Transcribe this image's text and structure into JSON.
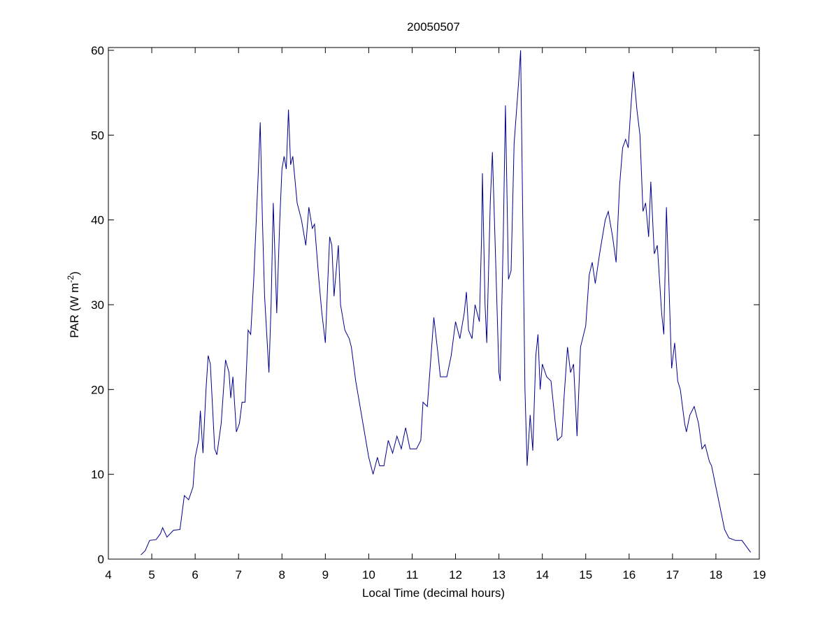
{
  "chart_data": {
    "type": "line",
    "title": "20050507",
    "xlabel": "Local Time (decimal hours)",
    "ylabel": {
      "text": "PAR (W m",
      "superscript": "-2",
      "suffix": ")"
    },
    "xlim": [
      4,
      19
    ],
    "ylim": [
      0,
      60
    ],
    "xticks": [
      4,
      5,
      6,
      7,
      8,
      9,
      10,
      11,
      12,
      13,
      14,
      15,
      16,
      17,
      18,
      19
    ],
    "yticks": [
      0,
      10,
      20,
      30,
      40,
      50,
      60
    ],
    "grid": false,
    "x": [
      4.75,
      4.85,
      4.95,
      5.1,
      5.2,
      5.25,
      5.35,
      5.5,
      5.65,
      5.75,
      5.85,
      5.95,
      6.0,
      6.08,
      6.12,
      6.18,
      6.25,
      6.3,
      6.35,
      6.45,
      6.5,
      6.6,
      6.7,
      6.78,
      6.82,
      6.87,
      6.95,
      7.02,
      7.08,
      7.15,
      7.22,
      7.28,
      7.35,
      7.45,
      7.5,
      7.55,
      7.6,
      7.7,
      7.75,
      7.8,
      7.88,
      7.95,
      8.0,
      8.05,
      8.1,
      8.15,
      8.2,
      8.25,
      8.35,
      8.45,
      8.55,
      8.62,
      8.7,
      8.75,
      8.85,
      8.92,
      9.0,
      9.05,
      9.1,
      9.15,
      9.2,
      9.3,
      9.35,
      9.45,
      9.55,
      9.6,
      9.7,
      9.8,
      9.9,
      10.0,
      10.1,
      10.2,
      10.25,
      10.35,
      10.45,
      10.55,
      10.65,
      10.75,
      10.85,
      10.95,
      11.1,
      11.2,
      11.25,
      11.35,
      11.5,
      11.6,
      11.65,
      11.8,
      11.9,
      12.0,
      12.1,
      12.2,
      12.25,
      12.3,
      12.38,
      12.45,
      12.55,
      12.6,
      12.62,
      12.68,
      12.72,
      12.8,
      12.85,
      12.92,
      13.0,
      13.03,
      13.1,
      13.15,
      13.22,
      13.28,
      13.35,
      13.45,
      13.5,
      13.55,
      13.6,
      13.65,
      13.72,
      13.78,
      13.85,
      13.9,
      13.95,
      14.0,
      14.1,
      14.2,
      14.3,
      14.35,
      14.45,
      14.5,
      14.58,
      14.65,
      14.72,
      14.8,
      14.88,
      15.0,
      15.08,
      15.15,
      15.22,
      15.32,
      15.45,
      15.52,
      15.62,
      15.7,
      15.78,
      15.85,
      15.92,
      15.98,
      16.05,
      16.1,
      16.18,
      16.25,
      16.32,
      16.38,
      16.45,
      16.5,
      16.58,
      16.65,
      16.7,
      16.75,
      16.8,
      16.86,
      16.92,
      16.98,
      17.05,
      17.12,
      17.18,
      17.28,
      17.32,
      17.4,
      17.5,
      17.6,
      17.68,
      17.75,
      17.85,
      17.9,
      18.0,
      18.1,
      18.2,
      18.3,
      18.45,
      18.6,
      18.7,
      18.8
    ],
    "series": [
      {
        "color": "#00008b",
        "values": [
          0.5,
          1,
          2.2,
          2.3,
          3,
          3.7,
          2.6,
          3.4,
          3.5,
          7.5,
          7,
          8.5,
          12,
          14,
          17.5,
          12.5,
          20,
          24,
          23,
          13,
          12.3,
          16,
          23.5,
          22,
          19,
          21.5,
          15,
          16,
          18.5,
          18.5,
          27,
          26.5,
          33,
          45,
          51.5,
          40,
          31,
          22,
          30,
          42,
          29,
          40,
          46,
          47.5,
          46,
          53,
          46.5,
          47.5,
          42,
          40,
          37,
          41.5,
          39,
          39.5,
          33,
          29,
          25.5,
          32,
          38,
          37,
          31,
          37,
          30,
          27,
          26,
          25,
          21,
          18,
          15,
          12,
          10,
          12,
          11,
          11,
          14,
          12.5,
          14.5,
          13,
          15.5,
          13,
          13,
          14,
          18.5,
          18,
          28.5,
          24,
          21.5,
          21.5,
          24,
          28,
          26,
          29,
          31.5,
          27,
          26,
          30,
          28,
          38,
          45.5,
          30,
          25.5,
          42,
          48,
          36,
          22,
          21,
          38,
          53.5,
          33,
          34,
          49,
          56,
          60,
          40,
          20,
          11,
          17,
          12.8,
          24,
          26.5,
          20,
          23,
          21.5,
          21,
          16,
          14,
          14.5,
          19,
          25,
          22,
          23,
          14.5,
          25,
          27.5,
          33.5,
          35,
          32.5,
          36,
          40,
          41,
          38,
          35,
          44,
          48.5,
          49.5,
          48.5,
          54,
          57.5,
          53,
          50,
          41,
          42,
          38,
          44.5,
          36,
          37,
          33,
          29,
          26.5,
          41.5,
          32,
          22.5,
          25.5,
          21,
          20,
          16,
          15,
          17,
          18,
          16,
          13,
          13.5,
          11.5,
          11,
          8.5,
          6,
          3.5,
          2.5,
          2.2,
          2.2,
          1.5,
          0.8
        ]
      }
    ]
  }
}
